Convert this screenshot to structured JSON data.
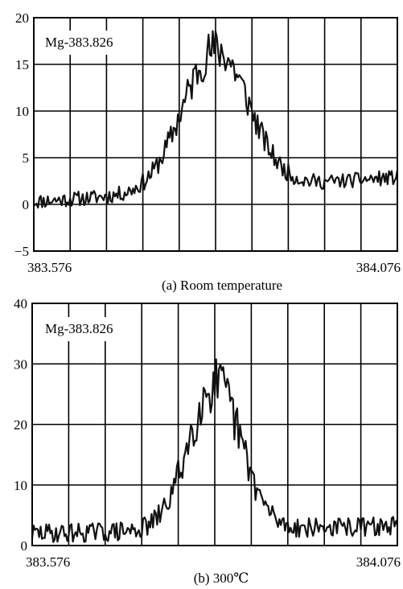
{
  "chart_data": [
    {
      "type": "line",
      "caption": "(a) Room temperature",
      "annotation": "Mg-383.826",
      "x_range": [
        383.576,
        384.076
      ],
      "x_tick_labels": [
        "383.576",
        "384.076"
      ],
      "ylim": [
        -5,
        20
      ],
      "y_ticks": [
        -5,
        0,
        5,
        10,
        15,
        20
      ],
      "grid": true,
      "series": [
        {
          "profile": {
            "center": 383.826,
            "peak": 15,
            "width": 0.045,
            "baseline": 0.3,
            "baseline_slope": 2.6,
            "noise": 1.6,
            "seed": 11
          }
        }
      ]
    },
    {
      "type": "line",
      "caption": "(b) 300℃",
      "annotation": "Mg-383.826",
      "x_range": [
        383.576,
        384.076
      ],
      "x_tick_labels": [
        "383.576",
        "384.076"
      ],
      "ylim": [
        0,
        40
      ],
      "y_ticks": [
        0,
        10,
        20,
        30,
        40
      ],
      "grid": true,
      "series": [
        {
          "profile": {
            "center": 383.826,
            "peak": 24,
            "width": 0.036,
            "baseline": 2.0,
            "baseline_slope": 1.2,
            "noise": 3.2,
            "seed": 29
          }
        }
      ]
    }
  ]
}
